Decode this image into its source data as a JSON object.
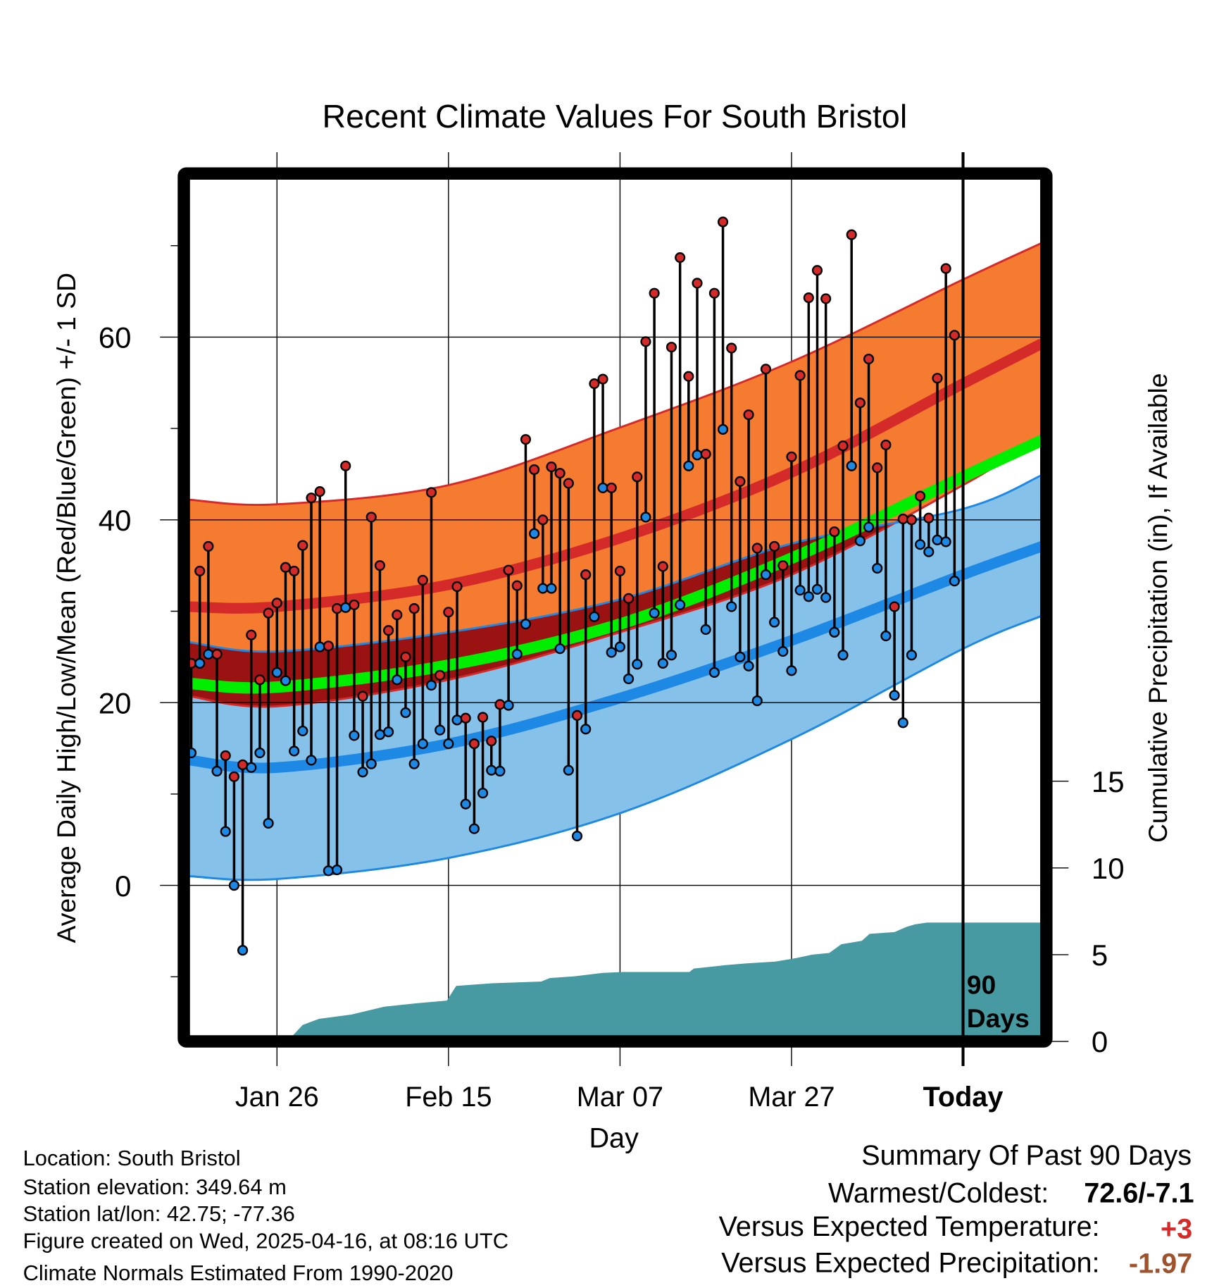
{
  "chart_data": {
    "type": "line",
    "title": "Recent Climate Values For South Bristol",
    "xlabel": "Day",
    "ylabel": "Average Daily High/Low/Mean (Red/Blue/Green) +/- 1 SD",
    "y2label": "Cumulative Precipitation (in), If Available",
    "x_ticks": [
      {
        "day": 10,
        "label": "Jan 26"
      },
      {
        "day": 30,
        "label": "Feb 15"
      },
      {
        "day": 50,
        "label": "Mar 07"
      },
      {
        "day": 70,
        "label": "Mar 27"
      },
      {
        "day": 90,
        "label": "Today"
      }
    ],
    "x_range_days_from_jan16": [
      -0.2,
      99.2
    ],
    "ylim": [
      -16.4,
      77.4
    ],
    "y_ticks": [
      0,
      20,
      40,
      60
    ],
    "y_minor_ticks": [
      -10,
      10,
      30,
      50,
      70
    ],
    "y2lim": [
      0,
      15
    ],
    "y2_ticks": [
      0,
      5,
      10,
      15
    ],
    "today_marker": {
      "day": 90,
      "label_line1": "90",
      "label_line2": "Days"
    },
    "grid": true,
    "daily_high": [
      24.3,
      34.4,
      37.1,
      25.3,
      14.2,
      11.9,
      13.2,
      27.4,
      22.5,
      29.8,
      30.9,
      34.8,
      34.4,
      37.2,
      42.4,
      43.1,
      26.2,
      30.3,
      45.9,
      30.7,
      20.7,
      40.3,
      35.0,
      27.9,
      29.6,
      25.0,
      30.3,
      33.4,
      43.0,
      23.0,
      29.9,
      32.7,
      18.3,
      15.5,
      18.4,
      15.8,
      19.8,
      34.5,
      32.8,
      48.8,
      45.5,
      40.0,
      45.8,
      45.1,
      44.0,
      18.6,
      34.0,
      54.9,
      55.4,
      43.5,
      34.4,
      31.4,
      44.7,
      59.5,
      64.8,
      34.9,
      58.9,
      68.7,
      55.7,
      65.9,
      47.2,
      64.8,
      72.6,
      58.8,
      44.2,
      51.5,
      36.9,
      56.5,
      37.1,
      35.0,
      46.9,
      55.8,
      64.3,
      67.3,
      64.2,
      38.7,
      48.1,
      71.2,
      52.8,
      57.6,
      45.7,
      48.2,
      30.5,
      40.1,
      40.0,
      42.6,
      40.2,
      55.5,
      67.5,
      60.2
    ],
    "daily_low": [
      14.5,
      24.3,
      25.3,
      12.5,
      5.9,
      0.0,
      -7.1,
      12.9,
      14.5,
      6.8,
      23.3,
      22.4,
      14.7,
      16.9,
      13.7,
      26.1,
      1.6,
      1.7,
      30.4,
      16.4,
      12.4,
      13.3,
      16.5,
      16.8,
      22.5,
      18.9,
      13.3,
      15.5,
      21.9,
      17.0,
      15.5,
      18.1,
      8.9,
      6.2,
      10.1,
      12.6,
      12.5,
      19.7,
      25.3,
      28.6,
      38.5,
      32.5,
      32.5,
      25.9,
      12.6,
      5.4,
      17.1,
      29.4,
      43.5,
      25.5,
      26.1,
      22.6,
      24.2,
      40.3,
      29.8,
      24.3,
      25.2,
      30.7,
      45.9,
      47.1,
      28.0,
      23.3,
      49.9,
      30.5,
      25.0,
      24.0,
      20.2,
      34.0,
      28.8,
      25.6,
      23.5,
      32.3,
      31.6,
      32.4,
      31.5,
      27.7,
      25.2,
      45.9,
      37.7,
      39.2,
      34.7,
      27.3,
      20.8,
      17.8,
      25.2,
      37.3,
      36.5,
      37.8,
      37.6,
      33.3
    ],
    "normals": {
      "days": [
        -0.2,
        10,
        30,
        50,
        70,
        90,
        99.2
      ],
      "high_plus_sd": [
        42.2,
        41.7,
        43.8,
        50.1,
        57.3,
        66.3,
        70.3
      ],
      "high_mean": [
        30.5,
        30.5,
        32.9,
        38.0,
        45.2,
        54.9,
        59.3
      ],
      "high_minus_sd": [
        20.7,
        19.6,
        22.5,
        27.7,
        34.0,
        43.8,
        49.2
      ],
      "mean": [
        22.1,
        21.7,
        24.1,
        28.6,
        35.8,
        44.7,
        48.7
      ],
      "low_plus_sd": [
        26.6,
        25.6,
        27.7,
        31.3,
        37.4,
        41.2,
        44.9
      ],
      "low_mean": [
        13.7,
        12.9,
        15.5,
        20.5,
        26.8,
        34.0,
        37.1
      ],
      "low_minus_sd": [
        1.0,
        0.7,
        3.0,
        7.9,
        16.0,
        25.9,
        29.5
      ]
    },
    "cumulative_precip": [
      [
        -0.2,
        0
      ],
      [
        11.2,
        0
      ],
      [
        13.0,
        0.95
      ],
      [
        14.9,
        1.3
      ],
      [
        18.7,
        1.55
      ],
      [
        22.5,
        2.0
      ],
      [
        26.3,
        2.2
      ],
      [
        29.8,
        2.35
      ],
      [
        30.9,
        3.2
      ],
      [
        35.1,
        3.35
      ],
      [
        40.8,
        3.45
      ],
      [
        41.8,
        3.65
      ],
      [
        44.7,
        3.75
      ],
      [
        48.0,
        3.95
      ],
      [
        50.4,
        4.0
      ],
      [
        58.1,
        4.0
      ],
      [
        58.6,
        4.2
      ],
      [
        62.4,
        4.4
      ],
      [
        64.8,
        4.5
      ],
      [
        68.1,
        4.6
      ],
      [
        70.5,
        4.8
      ],
      [
        72.4,
        5.0
      ],
      [
        74.4,
        5.1
      ],
      [
        75.8,
        5.6
      ],
      [
        78.2,
        5.8
      ],
      [
        79.1,
        6.2
      ],
      [
        82.0,
        6.3
      ],
      [
        83.4,
        6.6
      ],
      [
        84.4,
        6.75
      ],
      [
        85.8,
        6.85
      ],
      [
        99.2,
        6.85
      ]
    ],
    "colors": {
      "high_band": "#f47b30",
      "overlap_band": "#9b1212",
      "high_line": "#d42a2a",
      "low_band": "#85c1e9",
      "low_line": "#1e88e5",
      "mean_line": "#00ee00",
      "precip": "#479aa2",
      "temp_anomaly": "#d42a2a",
      "precip_anomaly": "#a0522d"
    }
  },
  "footer_left": [
    "Location: South Bristol",
    "Station elevation: 349.64 m",
    "Station lat/lon: 42.75; -77.36",
    "Figure created on Wed, 2025-04-16, at 08:16 UTC",
    "Climate Normals Estimated From 1990-2020"
  ],
  "summary": {
    "title": "Summary Of Past 90 Days",
    "warmest_coldest_label": "Warmest/Coldest:",
    "warmest_coldest_value": "72.6/-7.1",
    "temp_label": "Versus Expected Temperature:",
    "temp_value": "+3",
    "precip_label": "Versus Expected Precipitation:",
    "precip_value": "-1.97"
  }
}
